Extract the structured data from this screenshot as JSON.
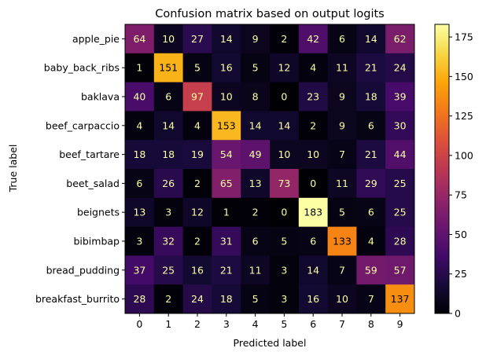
{
  "chart_data": {
    "type": "heatmap",
    "title": "Confusion matrix based on output logits",
    "xlabel": "Predicted label",
    "ylabel": "True label",
    "x_tick_labels": [
      "0",
      "1",
      "2",
      "3",
      "4",
      "5",
      "6",
      "7",
      "8",
      "9"
    ],
    "y_tick_labels": [
      "apple_pie",
      "baby_back_ribs",
      "baklava",
      "beef_carpaccio",
      "beef_tartare",
      "beet_salad",
      "beignets",
      "bibimbap",
      "bread_pudding",
      "breakfast_burrito"
    ],
    "values": [
      [
        64,
        10,
        27,
        14,
        9,
        2,
        42,
        6,
        14,
        62
      ],
      [
        1,
        151,
        5,
        16,
        5,
        12,
        4,
        11,
        21,
        24
      ],
      [
        40,
        6,
        97,
        10,
        8,
        0,
        23,
        9,
        18,
        39
      ],
      [
        4,
        14,
        4,
        153,
        14,
        14,
        2,
        9,
        6,
        30
      ],
      [
        18,
        18,
        19,
        54,
        49,
        10,
        10,
        7,
        21,
        44
      ],
      [
        6,
        26,
        2,
        65,
        13,
        73,
        0,
        11,
        29,
        25
      ],
      [
        13,
        3,
        12,
        1,
        2,
        0,
        183,
        5,
        6,
        25
      ],
      [
        3,
        32,
        2,
        31,
        6,
        5,
        6,
        133,
        4,
        28
      ],
      [
        37,
        25,
        16,
        21,
        11,
        3,
        14,
        7,
        59,
        57
      ],
      [
        28,
        2,
        24,
        18,
        5,
        3,
        16,
        10,
        7,
        137
      ]
    ],
    "colormap": "inferno",
    "value_range": [
      0,
      183
    ],
    "colorbar_ticks": [
      "0",
      "25",
      "50",
      "75",
      "100",
      "125",
      "150",
      "175"
    ],
    "colorbar_tick_values": [
      0,
      25,
      50,
      75,
      100,
      125,
      150,
      175
    ],
    "grid": false
  }
}
